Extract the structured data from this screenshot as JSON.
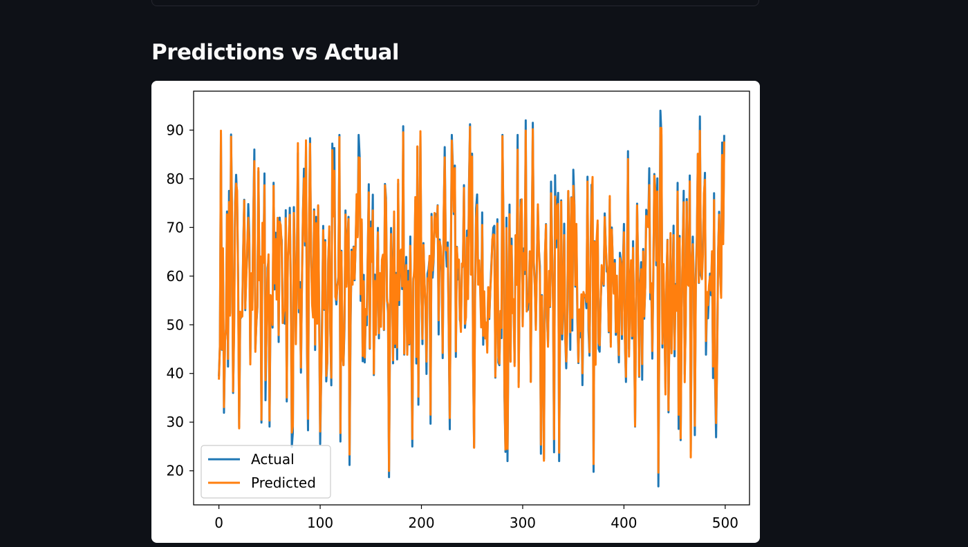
{
  "page": {
    "section_title": "Predictions vs Actual"
  },
  "chart_data": {
    "type": "line",
    "title": "",
    "xlabel": "",
    "ylabel": "",
    "xlim": [
      -25,
      524
    ],
    "ylim": [
      13,
      98
    ],
    "xticks": [
      0,
      100,
      200,
      300,
      400,
      500
    ],
    "yticks": [
      20,
      30,
      40,
      50,
      60,
      70,
      80,
      90
    ],
    "grid": false,
    "legend_position": "lower-left",
    "n_points": 500,
    "series": [
      {
        "name": "Actual",
        "color": "#1f77b4"
      },
      {
        "name": "Predicted",
        "color": "#ff7f0e"
      }
    ],
    "y_anchors": [
      {
        "x": 0,
        "y": 39.4
      },
      {
        "x": 2,
        "y": 89.3
      },
      {
        "x": 6,
        "y": 46.5
      },
      {
        "x": 12,
        "y": 89.1
      },
      {
        "x": 14,
        "y": 36.0
      },
      {
        "x": 20,
        "y": 29.0
      },
      {
        "x": 35,
        "y": 86.0
      },
      {
        "x": 42,
        "y": 29.9
      },
      {
        "x": 46,
        "y": 34.5
      },
      {
        "x": 73,
        "y": 27.8
      },
      {
        "x": 100,
        "y": 25.5
      },
      {
        "x": 129,
        "y": 21.2
      },
      {
        "x": 168,
        "y": 18.7
      },
      {
        "x": 182,
        "y": 90.8
      },
      {
        "x": 191,
        "y": 25.0
      },
      {
        "x": 223,
        "y": 86.5
      },
      {
        "x": 248,
        "y": 91.2
      },
      {
        "x": 283,
        "y": 23.9
      },
      {
        "x": 303,
        "y": 92.0
      },
      {
        "x": 310,
        "y": 91.5
      },
      {
        "x": 318,
        "y": 23.5
      },
      {
        "x": 331,
        "y": 23.8
      },
      {
        "x": 370,
        "y": 19.8
      },
      {
        "x": 434,
        "y": 16.8
      },
      {
        "x": 436,
        "y": 94.0
      },
      {
        "x": 456,
        "y": 26.3
      },
      {
        "x": 475,
        "y": 92.8
      },
      {
        "x": 499,
        "y": 89.0
      }
    ]
  }
}
